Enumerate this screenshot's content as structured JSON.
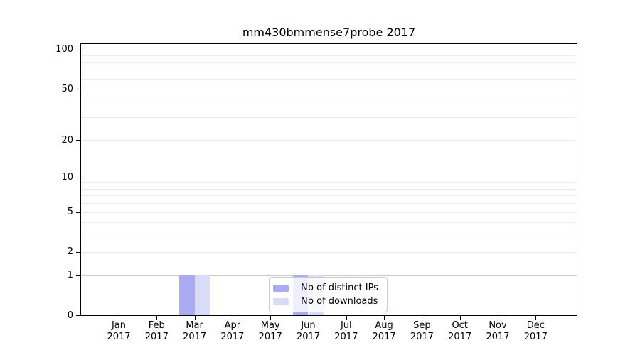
{
  "chart_data": {
    "type": "bar",
    "title": "mm430bmmense7probe 2017",
    "x_year_label": "2017",
    "categories": [
      "Jan",
      "Feb",
      "Mar",
      "Apr",
      "May",
      "Jun",
      "Jul",
      "Aug",
      "Sep",
      "Oct",
      "Nov",
      "Dec"
    ],
    "series": [
      {
        "name": "Nb of distinct IPs",
        "color": "#aaabf2",
        "values": [
          0,
          0,
          1,
          0,
          0,
          1,
          0,
          0,
          0,
          0,
          0,
          0
        ]
      },
      {
        "name": "Nb of downloads",
        "color": "#dadaf9",
        "values": [
          0,
          0,
          1,
          0,
          0,
          1,
          0,
          0,
          0,
          0,
          0,
          0
        ]
      }
    ],
    "y_scale": "log1p",
    "ylim": [
      0,
      110
    ],
    "y_ticks": [
      0,
      1,
      2,
      5,
      10,
      20,
      50,
      100
    ],
    "y_gridlines_major": [
      1,
      10,
      100
    ],
    "y_gridlines_minor": [
      2,
      3,
      4,
      5,
      6,
      7,
      8,
      9,
      20,
      30,
      40,
      50,
      60,
      70,
      80,
      90
    ],
    "grid": true,
    "legend": {
      "position": "lower-center-inside",
      "entries": [
        {
          "label": "Nb of distinct IPs",
          "color": "#aaabf2"
        },
        {
          "label": "Nb of downloads",
          "color": "#dadaf9"
        }
      ]
    },
    "colors": {
      "axis": "#000000",
      "grid_major": "#c8c8c8",
      "grid_minor": "#ebebeb",
      "legend_border": "#cccccc",
      "background": "#ffffff"
    }
  }
}
